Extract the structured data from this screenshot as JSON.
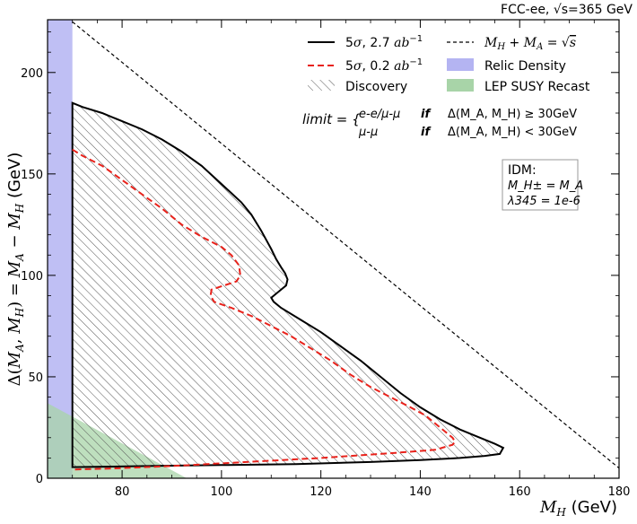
{
  "chart_data": {
    "type": "line",
    "header": "FCC-ee, √s=365 GeV",
    "xlabel": "M_H (GeV)",
    "ylabel": "Δ(M_A, M_H) = M_A − M_H (GeV)",
    "xlim": [
      65,
      180
    ],
    "ylim": [
      0,
      226
    ],
    "x_ticks": [
      80,
      100,
      120,
      140,
      160,
      180
    ],
    "y_ticks": [
      0,
      50,
      100,
      150,
      200
    ],
    "series": [
      {
        "name": "5σ, 2.7 ab⁻¹",
        "style": "solid",
        "color": "#000000",
        "points": [
          [
            70,
            185
          ],
          [
            72,
            183
          ],
          [
            76,
            180
          ],
          [
            80,
            176
          ],
          [
            84,
            172
          ],
          [
            88,
            167
          ],
          [
            92,
            161
          ],
          [
            96,
            154
          ],
          [
            100,
            145
          ],
          [
            104,
            136
          ],
          [
            106,
            130
          ],
          [
            108,
            122
          ],
          [
            110,
            113
          ],
          [
            111,
            108
          ],
          [
            112,
            104
          ],
          [
            112.8,
            101
          ],
          [
            113.3,
            98
          ],
          [
            113,
            95
          ],
          [
            111.5,
            92
          ],
          [
            110,
            89
          ],
          [
            110.5,
            87
          ],
          [
            112,
            84
          ],
          [
            116,
            78
          ],
          [
            120,
            72
          ],
          [
            124,
            65
          ],
          [
            128,
            58
          ],
          [
            132,
            50
          ],
          [
            136,
            42
          ],
          [
            140,
            35
          ],
          [
            144,
            29
          ],
          [
            148,
            24
          ],
          [
            152,
            20
          ],
          [
            155,
            17
          ],
          [
            156.7,
            15
          ],
          [
            156,
            12
          ],
          [
            153,
            11
          ],
          [
            148,
            10
          ],
          [
            140,
            9
          ],
          [
            130,
            8
          ],
          [
            115,
            7
          ],
          [
            100,
            6.5
          ],
          [
            85,
            6
          ],
          [
            75,
            5.6
          ],
          [
            70,
            5.5
          ]
        ]
      },
      {
        "name": "5σ, 0.2 ab⁻¹",
        "style": "dashed",
        "color": "#e8221b",
        "points": [
          [
            70,
            162
          ],
          [
            72,
            159
          ],
          [
            76,
            154
          ],
          [
            80,
            147
          ],
          [
            84,
            140
          ],
          [
            88,
            133
          ],
          [
            92,
            125
          ],
          [
            96,
            119
          ],
          [
            100,
            114
          ],
          [
            102,
            110
          ],
          [
            103.5,
            105
          ],
          [
            103.8,
            100
          ],
          [
            103,
            97
          ],
          [
            100.5,
            95
          ],
          [
            98,
            93
          ],
          [
            97.8,
            90
          ],
          [
            98.5,
            87
          ],
          [
            102,
            84
          ],
          [
            106,
            80
          ],
          [
            110,
            75
          ],
          [
            114,
            70
          ],
          [
            118,
            64
          ],
          [
            122,
            58
          ],
          [
            126,
            51
          ],
          [
            130,
            45
          ],
          [
            134,
            40
          ],
          [
            138,
            35
          ],
          [
            141,
            31
          ],
          [
            143,
            27
          ],
          [
            145,
            23
          ],
          [
            146.5,
            20
          ],
          [
            147,
            18
          ],
          [
            146.5,
            16.5
          ],
          [
            143,
            14
          ],
          [
            135,
            12.5
          ],
          [
            120,
            10
          ],
          [
            105,
            8
          ],
          [
            90,
            6
          ],
          [
            78,
            4.8
          ],
          [
            70,
            4.3
          ]
        ]
      },
      {
        "name": "M_H + M_A = √s",
        "style": "thin-dashed",
        "color": "#000000",
        "points": [
          [
            70,
            225
          ],
          [
            180,
            5
          ]
        ]
      }
    ],
    "regions": [
      {
        "name": "Discovery",
        "style": "hatched",
        "bounded_by": "5σ, 2.7 ab⁻¹"
      },
      {
        "name": "Relic Density",
        "color": "#b4b4f2",
        "x_range": [
          65,
          70
        ]
      },
      {
        "name": "LEP SUSY Recast",
        "color": "#a8d4a8",
        "corner": [
          [
            65,
            37
          ],
          [
            65,
            0
          ],
          [
            93,
            0
          ]
        ]
      }
    ],
    "legend": {
      "placement": "top-right",
      "entries": [
        {
          "label": "5σ, 2.7 ab⁻¹",
          "kind": "solid-line"
        },
        {
          "label": "5σ, 0.2 ab⁻¹",
          "kind": "red-dashed-line"
        },
        {
          "label": "Discovery",
          "kind": "hatch"
        },
        {
          "label": "M_H + M_A = √s",
          "kind": "dashed-line"
        },
        {
          "label": "Relic Density",
          "kind": "patch-blue"
        },
        {
          "label": "LEP SUSY Recast",
          "kind": "patch-green"
        }
      ]
    },
    "limit_annotation": {
      "prefix": "limit =",
      "rows": [
        {
          "channel": "e-e/μ-μ",
          "word": "if",
          "condition": "Δ(M_A, M_H) ≥ 30GeV"
        },
        {
          "channel": "μ-μ",
          "word": "if",
          "condition": "Δ(M_A, M_H) < 30GeV"
        }
      ]
    },
    "model_box": {
      "title": "IDM:",
      "lines": [
        "M_H± = M_A",
        "λ345 = 1e-6"
      ]
    }
  }
}
